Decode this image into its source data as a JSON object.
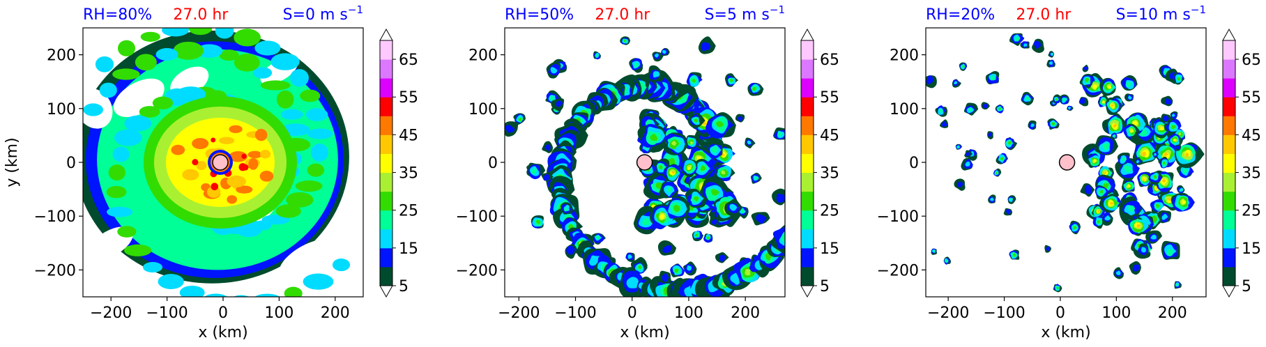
{
  "figure": {
    "background": "#ffffff",
    "title_colors": {
      "left": "#0000ff",
      "center": "#ff0000",
      "right": "#0000ff"
    }
  },
  "chart_data": [
    {
      "type": "heatmap",
      "title_left": "RH=80%",
      "title_center": "27.0 hr",
      "title_right": "S=0 m s",
      "title_right_sup": "−1",
      "xlabel": "x (km)",
      "ylabel": "y (km)",
      "xlim": [
        -250,
        250
      ],
      "ylim": [
        -250,
        250
      ],
      "xticks": [
        -200,
        -100,
        0,
        100,
        200
      ],
      "yticks": [
        -200,
        -100,
        0,
        100,
        200
      ],
      "xtick_labels": [
        "−200",
        "−100",
        "0",
        "100",
        "200"
      ],
      "ytick_labels": [
        "−200",
        "−100",
        "0",
        "100",
        "200"
      ],
      "center_marker": {
        "x": -5,
        "y": 0,
        "color": "#ffc0cb"
      },
      "colorbar": {
        "levels": [
          5,
          10,
          15,
          20,
          25,
          30,
          35,
          40,
          45,
          50,
          55,
          60,
          65,
          70
        ],
        "tick_values": [
          5,
          15,
          25,
          35,
          45,
          55,
          65
        ],
        "tick_labels": [
          "5",
          "15",
          "25",
          "35",
          "45",
          "55",
          "65"
        ],
        "colors": [
          "#004b2d",
          "#0014ff",
          "#00dcff",
          "#00ff96",
          "#32dc00",
          "#aaf032",
          "#ffff00",
          "#ffc800",
          "#ff7800",
          "#ff0000",
          "#dc00ff",
          "#dc78ff",
          "#ffc8ff"
        ],
        "extend": "both"
      }
    },
    {
      "type": "heatmap",
      "title_left": "RH=50%",
      "title_center": "27.0 hr",
      "title_right": "S=5 m s",
      "title_right_sup": "−1",
      "xlabel": "x (km)",
      "ylabel": "",
      "xlim": [
        -225,
        270
      ],
      "ylim": [
        -250,
        250
      ],
      "xticks": [
        -200,
        -100,
        0,
        100,
        200
      ],
      "yticks": [
        -200,
        -100,
        0,
        100,
        200
      ],
      "xtick_labels": [
        "−200",
        "−100",
        "0",
        "100",
        "200"
      ],
      "ytick_labels": [
        "−200",
        "−100",
        "0",
        "100",
        "200"
      ],
      "center_marker": {
        "x": 22,
        "y": 0,
        "color": "#ffc0cb"
      },
      "colorbar": {
        "levels": [
          5,
          10,
          15,
          20,
          25,
          30,
          35,
          40,
          45,
          50,
          55,
          60,
          65,
          70
        ],
        "tick_values": [
          5,
          15,
          25,
          35,
          45,
          55,
          65
        ],
        "tick_labels": [
          "5",
          "15",
          "25",
          "35",
          "45",
          "55",
          "65"
        ],
        "colors": [
          "#004b2d",
          "#0014ff",
          "#00dcff",
          "#00ff96",
          "#32dc00",
          "#aaf032",
          "#ffff00",
          "#ffc800",
          "#ff7800",
          "#ff0000",
          "#dc00ff",
          "#dc78ff",
          "#ffc8ff"
        ],
        "extend": "both"
      }
    },
    {
      "type": "heatmap",
      "title_left": "RH=20%",
      "title_center": "27.0 hr",
      "title_right": "S=10 m s",
      "title_right_sup": "−1",
      "xlabel": "x (km)",
      "ylabel": "",
      "xlim": [
        -240,
        260
      ],
      "ylim": [
        -250,
        250
      ],
      "xticks": [
        -200,
        -100,
        0,
        100,
        200
      ],
      "yticks": [
        -200,
        -100,
        0,
        100,
        200
      ],
      "xtick_labels": [
        "−200",
        "−100",
        "0",
        "100",
        "200"
      ],
      "ytick_labels": [
        "−200",
        "−100",
        "0",
        "100",
        "200"
      ],
      "center_marker": {
        "x": 12,
        "y": 0,
        "color": "#ffc0cb"
      },
      "colorbar": {
        "levels": [
          5,
          10,
          15,
          20,
          25,
          30,
          35,
          40,
          45,
          50,
          55,
          60,
          65,
          70
        ],
        "tick_values": [
          5,
          15,
          25,
          35,
          45,
          55,
          65
        ],
        "tick_labels": [
          "5",
          "15",
          "25",
          "35",
          "45",
          "55",
          "65"
        ],
        "colors": [
          "#004b2d",
          "#0014ff",
          "#00dcff",
          "#00ff96",
          "#32dc00",
          "#aaf032",
          "#ffff00",
          "#ffc800",
          "#ff7800",
          "#ff0000",
          "#dc00ff",
          "#dc78ff",
          "#ffc8ff"
        ],
        "extend": "both"
      }
    }
  ]
}
